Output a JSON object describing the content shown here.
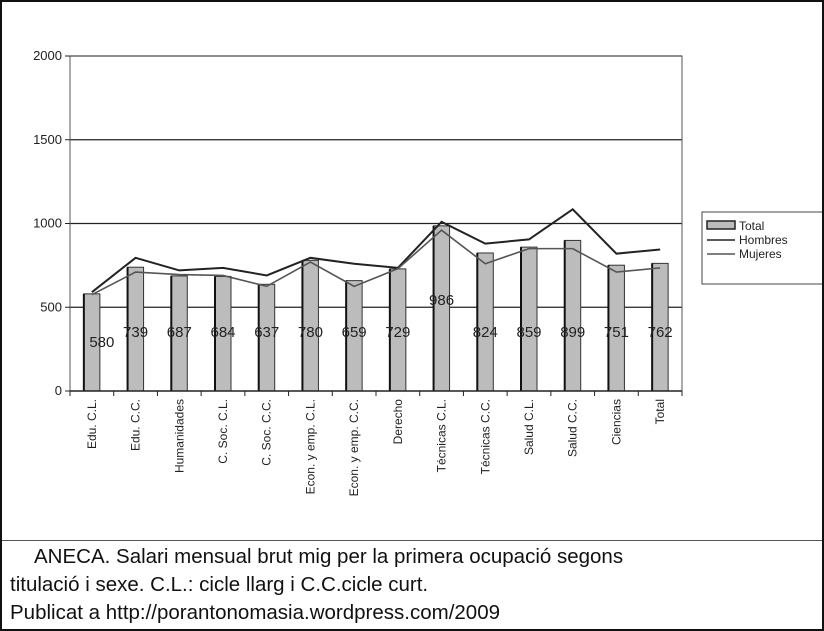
{
  "chart_data": {
    "type": "bar",
    "title": "",
    "xlabel": "",
    "ylabel": "",
    "ylim": [
      0,
      2000
    ],
    "yticks": [
      0,
      500,
      1000,
      1500,
      2000
    ],
    "grid": true,
    "legend_position": "right",
    "categories": [
      "Edu. C.L.",
      "Edu. C.C.",
      "Humanidades",
      "C. Soc. C.L.",
      "C. Soc. C.C.",
      "Econ. y emp. C.L.",
      "Econ. y emp. C.C.",
      "Derecho",
      "Técnicas C.L.",
      "Técnicas C.C.",
      "Salud C.L.",
      "Salud C.C.",
      "Ciencias",
      "Total"
    ],
    "series": [
      {
        "name": "Total",
        "kind": "bar",
        "color": "#bcbcbc",
        "values": [
          580,
          739,
          687,
          684,
          637,
          780,
          659,
          729,
          986,
          824,
          859,
          899,
          751,
          762
        ]
      },
      {
        "name": "Hombres",
        "kind": "line",
        "color": "#222222",
        "values": [
          590,
          795,
          720,
          735,
          690,
          795,
          760,
          735,
          1010,
          880,
          905,
          1085,
          820,
          845
        ]
      },
      {
        "name": "Mujeres",
        "kind": "line",
        "color": "#555555",
        "values": [
          575,
          710,
          695,
          690,
          625,
          770,
          625,
          730,
          960,
          760,
          850,
          850,
          710,
          735
        ]
      }
    ]
  },
  "caption": {
    "line1": "ANECA. Salari mensual brut mig per la  primera ocupació segons",
    "line2": "titulació i sexe. C.L.: cicle llarg i C.C.cicle curt.",
    "line3": "Publicat a http://porantonomasia.wordpress.com/2009"
  }
}
